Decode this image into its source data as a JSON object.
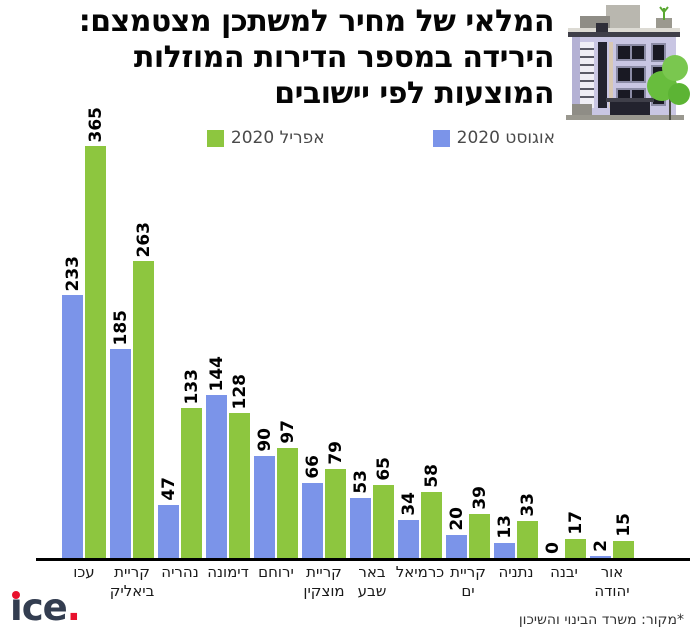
{
  "title": "המלאי של מחיר למשתכן מצטמצם:\nהירידה במספר הדירות המוזלות\nהמוצעות לפי יישובים",
  "legend": {
    "april": {
      "label": "אפריל 2020",
      "color": "#8dc63f"
    },
    "august": {
      "label": "אוגוסט 2020",
      "color": "#7b94e9"
    }
  },
  "chart_data": {
    "type": "bar",
    "title": "המלאי של מחיר למשתכן מצטמצם: הירידה במספר הדירות המוזלות המוצעות לפי יישובים",
    "categories": [
      "עכו",
      "קריית\nביאליק",
      "נהריה",
      "דימונה",
      "ירוחם",
      "קריית\nמוצקין",
      "באר\nשבע",
      "כרמיאל",
      "קריית\nים",
      "נתניה",
      "יבנה",
      "אור\nיהודה"
    ],
    "series": [
      {
        "name": "אוגוסט 2020",
        "color": "#7b94e9",
        "values": [
          233,
          185,
          47,
          144,
          90,
          66,
          53,
          34,
          20,
          13,
          0,
          2
        ]
      },
      {
        "name": "אפריל 2020",
        "color": "#8dc63f",
        "values": [
          365,
          263,
          133,
          128,
          97,
          79,
          65,
          58,
          39,
          33,
          17,
          15
        ]
      }
    ],
    "ylim": [
      0,
      365
    ],
    "grid": false,
    "legend_position": "top",
    "value_labels": "rotated-vertical",
    "axis_color": "#000000"
  },
  "icons": {
    "building": "apartment-building-illustration"
  },
  "footer": {
    "logo": "ice.",
    "source": "*מקור: משרד הבינוי והשיכון"
  }
}
